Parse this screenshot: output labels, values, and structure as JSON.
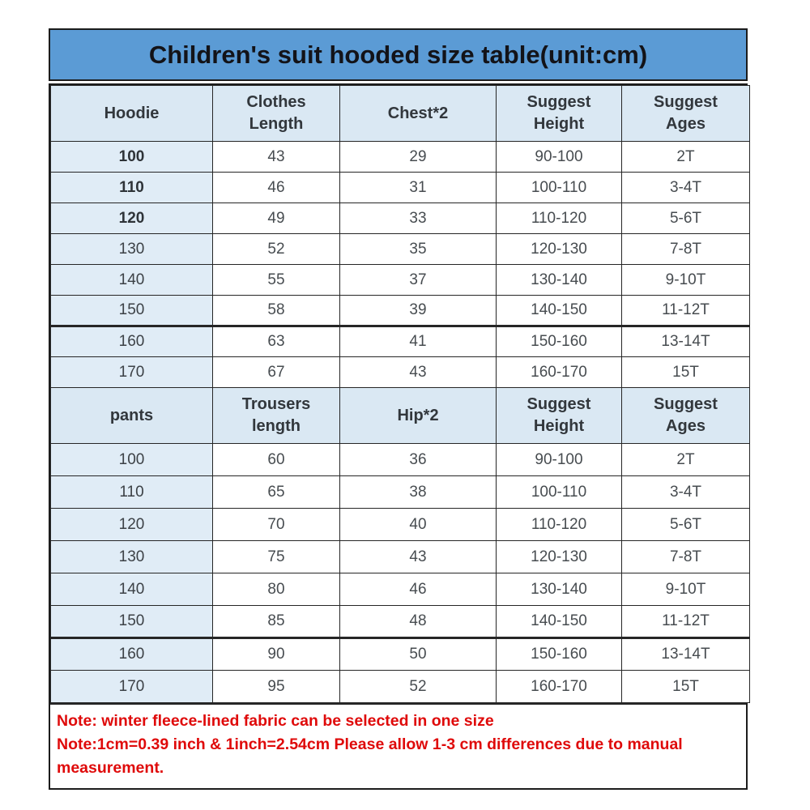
{
  "title": "Children's suit hooded size table(unit:cm)",
  "sections": [
    {
      "name": "hoodie",
      "headers": [
        "Hoodie",
        "Clothes\nLength",
        "Chest*2",
        "Suggest\nHeight",
        "Suggest\nAges"
      ],
      "rows": [
        {
          "size": "100",
          "size_bold": true,
          "values": [
            "43",
            "29",
            "90-100",
            "2T"
          ]
        },
        {
          "size": "110",
          "size_bold": true,
          "values": [
            "46",
            "31",
            "100-110",
            "3-4T"
          ]
        },
        {
          "size": "120",
          "size_bold": true,
          "values": [
            "49",
            "33",
            "110-120",
            "5-6T"
          ]
        },
        {
          "size": "130",
          "size_bold": false,
          "values": [
            "52",
            "35",
            "120-130",
            "7-8T"
          ]
        },
        {
          "size": "140",
          "size_bold": false,
          "values": [
            "55",
            "37",
            "130-140",
            "9-10T"
          ]
        },
        {
          "size": "150",
          "size_bold": false,
          "values": [
            "58",
            "39",
            "140-150",
            "11-12T"
          ]
        },
        {
          "size": "160",
          "size_bold": false,
          "values": [
            "63",
            "41",
            "150-160",
            "13-14T"
          ]
        },
        {
          "size": "170",
          "size_bold": false,
          "values": [
            "67",
            "43",
            "160-170",
            "15T"
          ]
        }
      ]
    },
    {
      "name": "pants",
      "headers": [
        "pants",
        "Trousers\nlength",
        "Hip*2",
        "Suggest\nHeight",
        "Suggest\nAges"
      ],
      "rows": [
        {
          "size": "100",
          "size_bold": false,
          "values": [
            "60",
            "36",
            "90-100",
            "2T"
          ]
        },
        {
          "size": "110",
          "size_bold": false,
          "values": [
            "65",
            "38",
            "100-110",
            "3-4T"
          ]
        },
        {
          "size": "120",
          "size_bold": false,
          "values": [
            "70",
            "40",
            "110-120",
            "5-6T"
          ]
        },
        {
          "size": "130",
          "size_bold": false,
          "values": [
            "75",
            "43",
            "120-130",
            "7-8T"
          ]
        },
        {
          "size": "140",
          "size_bold": false,
          "values": [
            "80",
            "46",
            "130-140",
            "9-10T"
          ]
        },
        {
          "size": "150",
          "size_bold": false,
          "values": [
            "85",
            "48",
            "140-150",
            "11-12T"
          ]
        },
        {
          "size": "160",
          "size_bold": false,
          "values": [
            "90",
            "50",
            "150-160",
            "13-14T"
          ]
        },
        {
          "size": "170",
          "size_bold": false,
          "values": [
            "95",
            "52",
            "160-170",
            "15T"
          ]
        }
      ]
    }
  ],
  "notes": [
    "Note: winter fleece-lined fabric can be selected in one size",
    "Note:1cm=0.39 inch & 1inch=2.54cm Please allow 1-3 cm differences due to manual measurement."
  ],
  "colors": {
    "title_bg": "#5b9bd5",
    "header_bg": "#dae8f3",
    "size_col_bg": "#e0ecf6",
    "note_red": "#df0a0a",
    "border": "#262626"
  }
}
